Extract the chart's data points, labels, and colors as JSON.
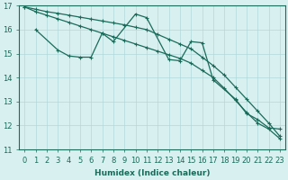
{
  "xlabel": "Humidex (Indice chaleur)",
  "x_values": [
    0,
    1,
    2,
    3,
    4,
    5,
    6,
    7,
    8,
    9,
    10,
    11,
    12,
    13,
    14,
    15,
    16,
    17,
    18,
    19,
    20,
    21,
    22,
    23
  ],
  "line_straight1": [
    16.95,
    16.85,
    16.75,
    16.68,
    16.6,
    16.52,
    16.44,
    16.36,
    16.28,
    16.2,
    16.1,
    16.0,
    15.8,
    15.6,
    15.4,
    15.2,
    14.85,
    14.5,
    14.1,
    13.6,
    13.1,
    12.6,
    12.1,
    11.55
  ],
  "line_straight2": [
    16.95,
    16.75,
    16.6,
    16.45,
    16.3,
    16.15,
    16.0,
    15.85,
    15.7,
    15.55,
    15.4,
    15.25,
    15.1,
    14.95,
    14.8,
    14.6,
    14.3,
    14.0,
    13.55,
    13.05,
    12.55,
    12.1,
    11.85,
    11.45
  ],
  "line_zigzag": [
    null,
    16.0,
    null,
    15.15,
    14.9,
    14.85,
    14.85,
    15.85,
    15.5,
    null,
    16.65,
    16.5,
    null,
    14.75,
    14.7,
    15.5,
    15.45,
    13.9,
    null,
    13.1,
    12.5,
    12.25,
    11.9,
    11.85
  ],
  "ylim": [
    11,
    17
  ],
  "xlim": [
    -0.5,
    23.5
  ],
  "bg_color": "#d8f0f0",
  "grid_color": "#b0d8d8",
  "line_color": "#1a6b5a"
}
